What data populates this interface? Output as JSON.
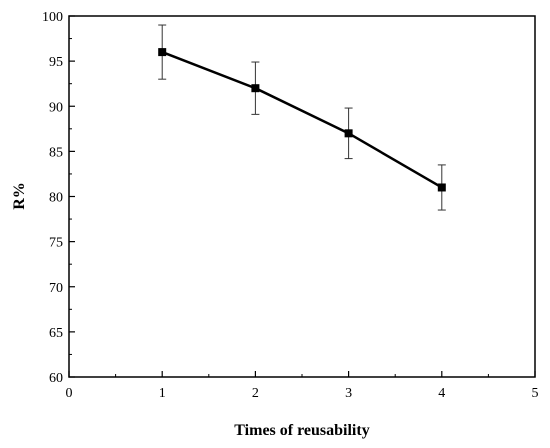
{
  "chart_data": {
    "type": "line",
    "title": "",
    "xlabel": "Times of reusability",
    "ylabel": "R%",
    "xlim": [
      0,
      5
    ],
    "ylim": [
      60,
      100
    ],
    "x_ticks": [
      0,
      1,
      2,
      3,
      4,
      5
    ],
    "y_ticks": [
      60,
      65,
      70,
      75,
      80,
      85,
      90,
      95,
      100
    ],
    "grid": false,
    "legend": "none",
    "series": [
      {
        "x": [
          1,
          2,
          3,
          4
        ],
        "values": [
          96,
          92,
          87,
          81
        ],
        "error": [
          3.0,
          2.9,
          2.8,
          2.5
        ],
        "marker": "square",
        "color": "#000000"
      }
    ]
  }
}
